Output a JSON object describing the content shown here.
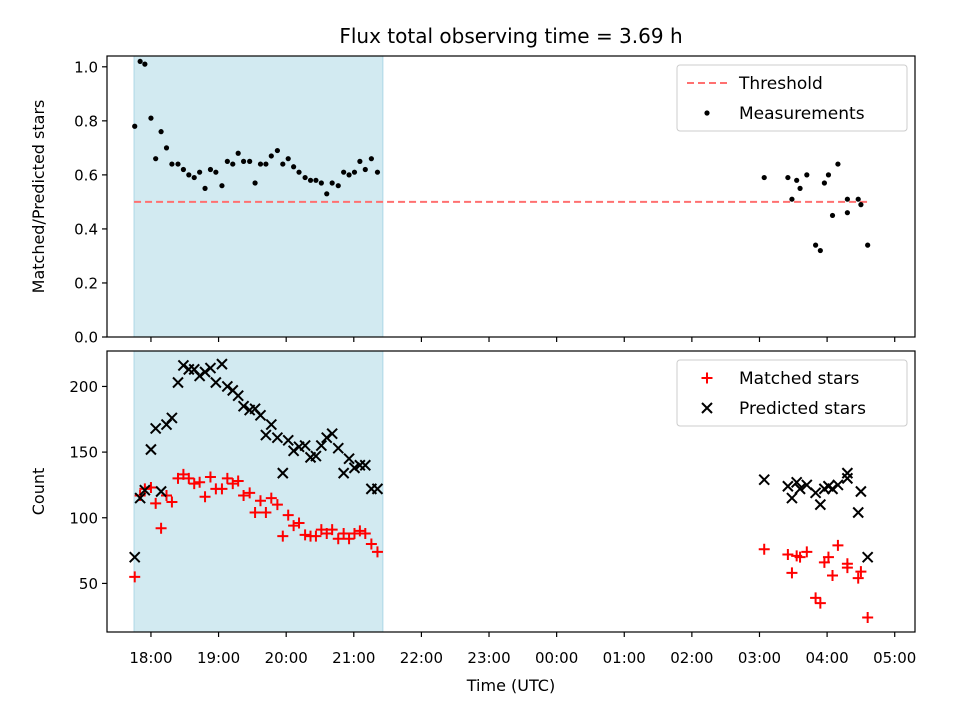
{
  "chart_data": {
    "title": "Flux total observing time = 3.69 h",
    "colors": {
      "shade": "#add8e6",
      "threshold": "#ff7070",
      "measurement": "#000000",
      "matched": "#ff0000",
      "predicted": "#000000"
    },
    "x_axis": {
      "label": "Time (UTC)",
      "type": "time",
      "range_hours": [
        17.35,
        29.3
      ],
      "ticks": [
        {
          "h": 18,
          "label": "18:00"
        },
        {
          "h": 19,
          "label": "19:00"
        },
        {
          "h": 20,
          "label": "20:00"
        },
        {
          "h": 21,
          "label": "21:00"
        },
        {
          "h": 22,
          "label": "22:00"
        },
        {
          "h": 23,
          "label": "23:00"
        },
        {
          "h": 24,
          "label": "00:00"
        },
        {
          "h": 25,
          "label": "01:00"
        },
        {
          "h": 26,
          "label": "02:00"
        },
        {
          "h": 27,
          "label": "03:00"
        },
        {
          "h": 28,
          "label": "04:00"
        },
        {
          "h": 29,
          "label": "05:00"
        }
      ]
    },
    "panels": [
      {
        "type": "scatter",
        "ylabel": "Matched/Predicted stars",
        "ylim": [
          0,
          1.04
        ],
        "yticks": [
          0.0,
          0.2,
          0.4,
          0.6,
          0.8,
          1.0
        ],
        "ytick_labels": [
          "0.0",
          "0.2",
          "0.4",
          "0.6",
          "0.8",
          "1.0"
        ],
        "shaded_span_hours": [
          17.75,
          21.43
        ],
        "threshold": {
          "name": "Threshold",
          "value": 0.5,
          "x_hours": [
            17.75,
            28.6
          ]
        },
        "legend": {
          "position": "upper-right",
          "entries": [
            "Threshold",
            "Measurements"
          ]
        },
        "series": [
          {
            "name": "Measurements",
            "marker": "dot",
            "points": [
              [
                17.76,
                0.78
              ],
              [
                17.84,
                1.02
              ],
              [
                17.91,
                1.01
              ],
              [
                18.0,
                0.81
              ],
              [
                18.07,
                0.66
              ],
              [
                18.15,
                0.76
              ],
              [
                18.23,
                0.7
              ],
              [
                18.31,
                0.64
              ],
              [
                18.4,
                0.64
              ],
              [
                18.48,
                0.62
              ],
              [
                18.56,
                0.6
              ],
              [
                18.64,
                0.59
              ],
              [
                18.72,
                0.61
              ],
              [
                18.8,
                0.55
              ],
              [
                18.88,
                0.62
              ],
              [
                18.96,
                0.61
              ],
              [
                19.05,
                0.56
              ],
              [
                19.13,
                0.65
              ],
              [
                19.21,
                0.64
              ],
              [
                19.29,
                0.68
              ],
              [
                19.37,
                0.65
              ],
              [
                19.46,
                0.65
              ],
              [
                19.54,
                0.57
              ],
              [
                19.62,
                0.64
              ],
              [
                19.7,
                0.64
              ],
              [
                19.78,
                0.67
              ],
              [
                19.87,
                0.69
              ],
              [
                19.95,
                0.64
              ],
              [
                20.03,
                0.66
              ],
              [
                20.11,
                0.63
              ],
              [
                20.19,
                0.61
              ],
              [
                20.28,
                0.59
              ],
              [
                20.36,
                0.58
              ],
              [
                20.44,
                0.58
              ],
              [
                20.52,
                0.57
              ],
              [
                20.6,
                0.53
              ],
              [
                20.68,
                0.57
              ],
              [
                20.77,
                0.56
              ],
              [
                20.85,
                0.61
              ],
              [
                20.93,
                0.6
              ],
              [
                21.01,
                0.61
              ],
              [
                21.09,
                0.65
              ],
              [
                21.17,
                0.62
              ],
              [
                21.26,
                0.66
              ],
              [
                21.35,
                0.61
              ],
              [
                27.07,
                0.59
              ],
              [
                27.42,
                0.59
              ],
              [
                27.48,
                0.51
              ],
              [
                27.55,
                0.58
              ],
              [
                27.6,
                0.55
              ],
              [
                27.7,
                0.6
              ],
              [
                27.83,
                0.34
              ],
              [
                27.9,
                0.32
              ],
              [
                27.96,
                0.57
              ],
              [
                28.02,
                0.6
              ],
              [
                28.08,
                0.45
              ],
              [
                28.16,
                0.64
              ],
              [
                28.3,
                0.46
              ],
              [
                28.3,
                0.51
              ],
              [
                28.46,
                0.51
              ],
              [
                28.5,
                0.49
              ],
              [
                28.6,
                0.34
              ]
            ]
          }
        ]
      },
      {
        "type": "scatter",
        "ylabel": "Count",
        "ylim": [
          13,
          227
        ],
        "yticks": [
          50,
          100,
          150,
          200
        ],
        "ytick_labels": [
          "50",
          "100",
          "150",
          "200"
        ],
        "shaded_span_hours": [
          17.75,
          21.43
        ],
        "legend": {
          "position": "upper-right",
          "entries": [
            "Matched stars",
            "Predicted stars"
          ]
        },
        "series": [
          {
            "name": "Matched stars",
            "marker": "plus",
            "points": [
              [
                17.76,
                55
              ],
              [
                17.84,
                117
              ],
              [
                17.91,
                122
              ],
              [
                18.0,
                123
              ],
              [
                18.07,
                111
              ],
              [
                18.15,
                92
              ],
              [
                18.23,
                117
              ],
              [
                18.31,
                112
              ],
              [
                18.4,
                130
              ],
              [
                18.48,
                133
              ],
              [
                18.56,
                130
              ],
              [
                18.64,
                126
              ],
              [
                18.72,
                127
              ],
              [
                18.8,
                116
              ],
              [
                18.88,
                131
              ],
              [
                18.96,
                122
              ],
              [
                19.05,
                122
              ],
              [
                19.13,
                130
              ],
              [
                19.21,
                126
              ],
              [
                19.29,
                128
              ],
              [
                19.37,
                117
              ],
              [
                19.46,
                119
              ],
              [
                19.54,
                104
              ],
              [
                19.62,
                113
              ],
              [
                19.7,
                104
              ],
              [
                19.78,
                115
              ],
              [
                19.87,
                110
              ],
              [
                19.95,
                86
              ],
              [
                20.03,
                102
              ],
              [
                20.11,
                94
              ],
              [
                20.19,
                96
              ],
              [
                20.28,
                87
              ],
              [
                20.36,
                86
              ],
              [
                20.44,
                86
              ],
              [
                20.52,
                91
              ],
              [
                20.6,
                88
              ],
              [
                20.68,
                91
              ],
              [
                20.77,
                84
              ],
              [
                20.85,
                88
              ],
              [
                20.93,
                84
              ],
              [
                21.01,
                88
              ],
              [
                21.09,
                90
              ],
              [
                21.17,
                88
              ],
              [
                21.26,
                80
              ],
              [
                21.35,
                74
              ],
              [
                27.07,
                76
              ],
              [
                27.42,
                72
              ],
              [
                27.48,
                58
              ],
              [
                27.55,
                71
              ],
              [
                27.6,
                70
              ],
              [
                27.7,
                74
              ],
              [
                27.83,
                39
              ],
              [
                27.9,
                35
              ],
              [
                27.96,
                66
              ],
              [
                28.02,
                70
              ],
              [
                28.08,
                56
              ],
              [
                28.16,
                79
              ],
              [
                28.3,
                62
              ],
              [
                28.3,
                65
              ],
              [
                28.46,
                54
              ],
              [
                28.5,
                59
              ],
              [
                28.6,
                24
              ]
            ]
          },
          {
            "name": "Predicted stars",
            "marker": "x",
            "points": [
              [
                17.76,
                70
              ],
              [
                17.84,
                115
              ],
              [
                17.91,
                121
              ],
              [
                18.0,
                152
              ],
              [
                18.07,
                168
              ],
              [
                18.15,
                120
              ],
              [
                18.23,
                171
              ],
              [
                18.31,
                176
              ],
              [
                18.4,
                203
              ],
              [
                18.48,
                216
              ],
              [
                18.56,
                213
              ],
              [
                18.64,
                213
              ],
              [
                18.72,
                208
              ],
              [
                18.8,
                211
              ],
              [
                18.88,
                214
              ],
              [
                18.96,
                203
              ],
              [
                19.05,
                217
              ],
              [
                19.13,
                200
              ],
              [
                19.21,
                197
              ],
              [
                19.29,
                193
              ],
              [
                19.37,
                185
              ],
              [
                19.46,
                182
              ],
              [
                19.54,
                183
              ],
              [
                19.62,
                178
              ],
              [
                19.7,
                163
              ],
              [
                19.78,
                171
              ],
              [
                19.87,
                161
              ],
              [
                19.95,
                134
              ],
              [
                20.03,
                159
              ],
              [
                20.11,
                151
              ],
              [
                20.19,
                154
              ],
              [
                20.28,
                155
              ],
              [
                20.36,
                146
              ],
              [
                20.44,
                147
              ],
              [
                20.52,
                155
              ],
              [
                20.6,
                161
              ],
              [
                20.68,
                164
              ],
              [
                20.77,
                153
              ],
              [
                20.85,
                134
              ],
              [
                20.93,
                145
              ],
              [
                21.01,
                138
              ],
              [
                21.09,
                140
              ],
              [
                21.17,
                140
              ],
              [
                21.26,
                122
              ],
              [
                21.35,
                122
              ],
              [
                27.07,
                129
              ],
              [
                27.42,
                124
              ],
              [
                27.48,
                115
              ],
              [
                27.55,
                127
              ],
              [
                27.6,
                122
              ],
              [
                27.7,
                125
              ],
              [
                27.83,
                119
              ],
              [
                27.9,
                110
              ],
              [
                27.96,
                122
              ],
              [
                28.02,
                124
              ],
              [
                28.08,
                122
              ],
              [
                28.16,
                125
              ],
              [
                28.3,
                130
              ],
              [
                28.3,
                134
              ],
              [
                28.46,
                104
              ],
              [
                28.5,
                120
              ],
              [
                28.6,
                70
              ]
            ]
          }
        ]
      }
    ]
  }
}
